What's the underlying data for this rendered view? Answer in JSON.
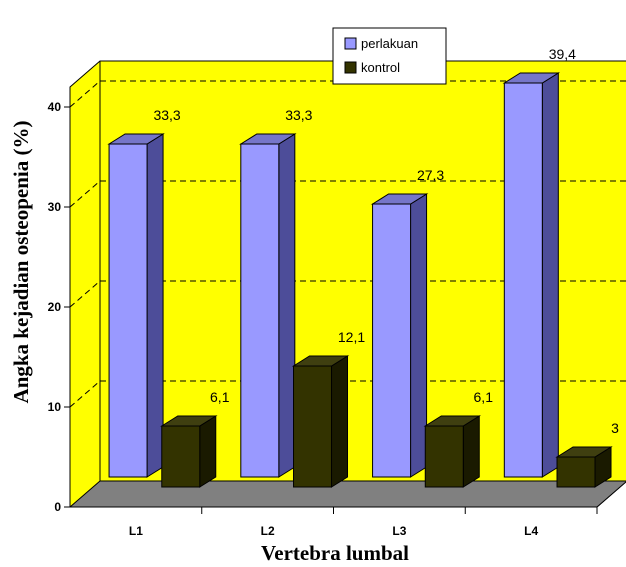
{
  "chart_data": {
    "type": "bar",
    "style": "3d-clustered-column",
    "categories": [
      "L1",
      "L2",
      "L3",
      "L4"
    ],
    "series": [
      {
        "name": "perlakuan",
        "values": [
          33.3,
          33.3,
          27.3,
          39.4
        ],
        "labels": [
          "33,3",
          "33,3",
          "27,3",
          "39,4"
        ],
        "color": "#9999ff",
        "side_color": "#4d4d99",
        "top_color": "#7676c9"
      },
      {
        "name": "kontrol",
        "values": [
          6.1,
          12.1,
          6.1,
          3
        ],
        "labels": [
          "6,1",
          "12,1",
          "6,1",
          "3"
        ],
        "color": "#333300",
        "side_color": "#1a1a00",
        "top_color": "#3f3f10"
      }
    ],
    "xlabel": "Vertebra  lumbal",
    "ylabel": "Angka  kejadian  osteopenia  (%)",
    "ylim": [
      0,
      40
    ],
    "yticks": [
      "0",
      "10",
      "20",
      "30",
      "40"
    ],
    "grid": "dashed-horizontal",
    "legend_position": "top-right",
    "wall_color": "#ffff00",
    "floor_color": "#808080"
  }
}
